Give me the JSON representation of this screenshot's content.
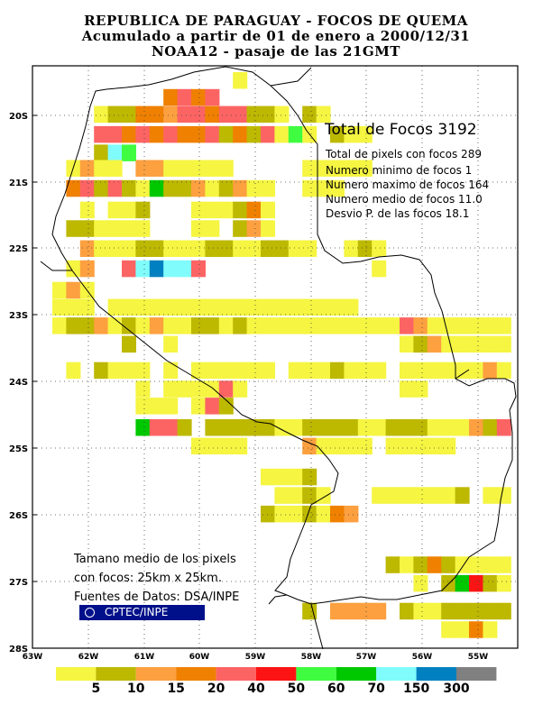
{
  "title": {
    "line1": "REPUBLICA DE PARAGUAY - FOCOS DE QUEMA",
    "line2": "Acumulado a partir de 01 de enero a 2000/12/31",
    "line3": "NOAA12 - pasaje de las 21GMT"
  },
  "stats": {
    "total": "Total de Focos 3192",
    "pixels": "Total de pixels con focos 289",
    "min": "Numero minimo de focos 1",
    "max": "Numero maximo de focos 164",
    "mean": "Numero medio de focos 11.0",
    "std": "Desvio P. de las focos 18.1"
  },
  "notes": {
    "line1": "Tamano medio de los pixels",
    "line2": "con focos: 25km x 25km.",
    "line3": "Fuentes de Datos: DSA/INPE",
    "badge": "CPTEC/INPE"
  },
  "axes": {
    "lat_labels": [
      "20S",
      "21S",
      "22S",
      "23S",
      "24S",
      "25S",
      "26S",
      "27S",
      "28S"
    ],
    "lon_labels": [
      "63W",
      "62W",
      "61W",
      "60W",
      "59W",
      "58W",
      "57W",
      "56W",
      "55W"
    ]
  },
  "legend": {
    "colors": [
      "#f5f542",
      "#bdb800",
      "#fca040",
      "#f08000",
      "#fc6464",
      "#fc1414",
      "#40fc40",
      "#00c800",
      "#80fcfc",
      "#0080c0",
      "#808080"
    ],
    "labels": [
      "5",
      "10",
      "15",
      "20",
      "40",
      "50",
      "60",
      "70",
      "150",
      "300"
    ]
  },
  "fire_rows": [
    {
      "lat": "20S top",
      "cells": [
        [
          3,
          5
        ],
        [
          4,
          3
        ],
        [
          6,
          4
        ],
        [
          7,
          4
        ],
        [
          8,
          5
        ],
        [
          9,
          5
        ],
        [
          10,
          2
        ],
        [
          11,
          2
        ]
      ]
    },
    {
      "lat": "20S",
      "cells": [
        [
          1,
          1
        ],
        [
          2,
          2
        ],
        [
          3,
          1
        ],
        [
          4,
          4
        ],
        [
          5,
          4
        ],
        [
          6,
          1
        ],
        [
          7,
          3
        ],
        [
          8,
          4
        ],
        [
          9,
          2
        ],
        [
          10,
          2
        ],
        [
          11,
          2
        ],
        [
          12,
          1
        ],
        [
          13,
          2
        ],
        [
          14,
          1
        ]
      ]
    }
  ]
}
